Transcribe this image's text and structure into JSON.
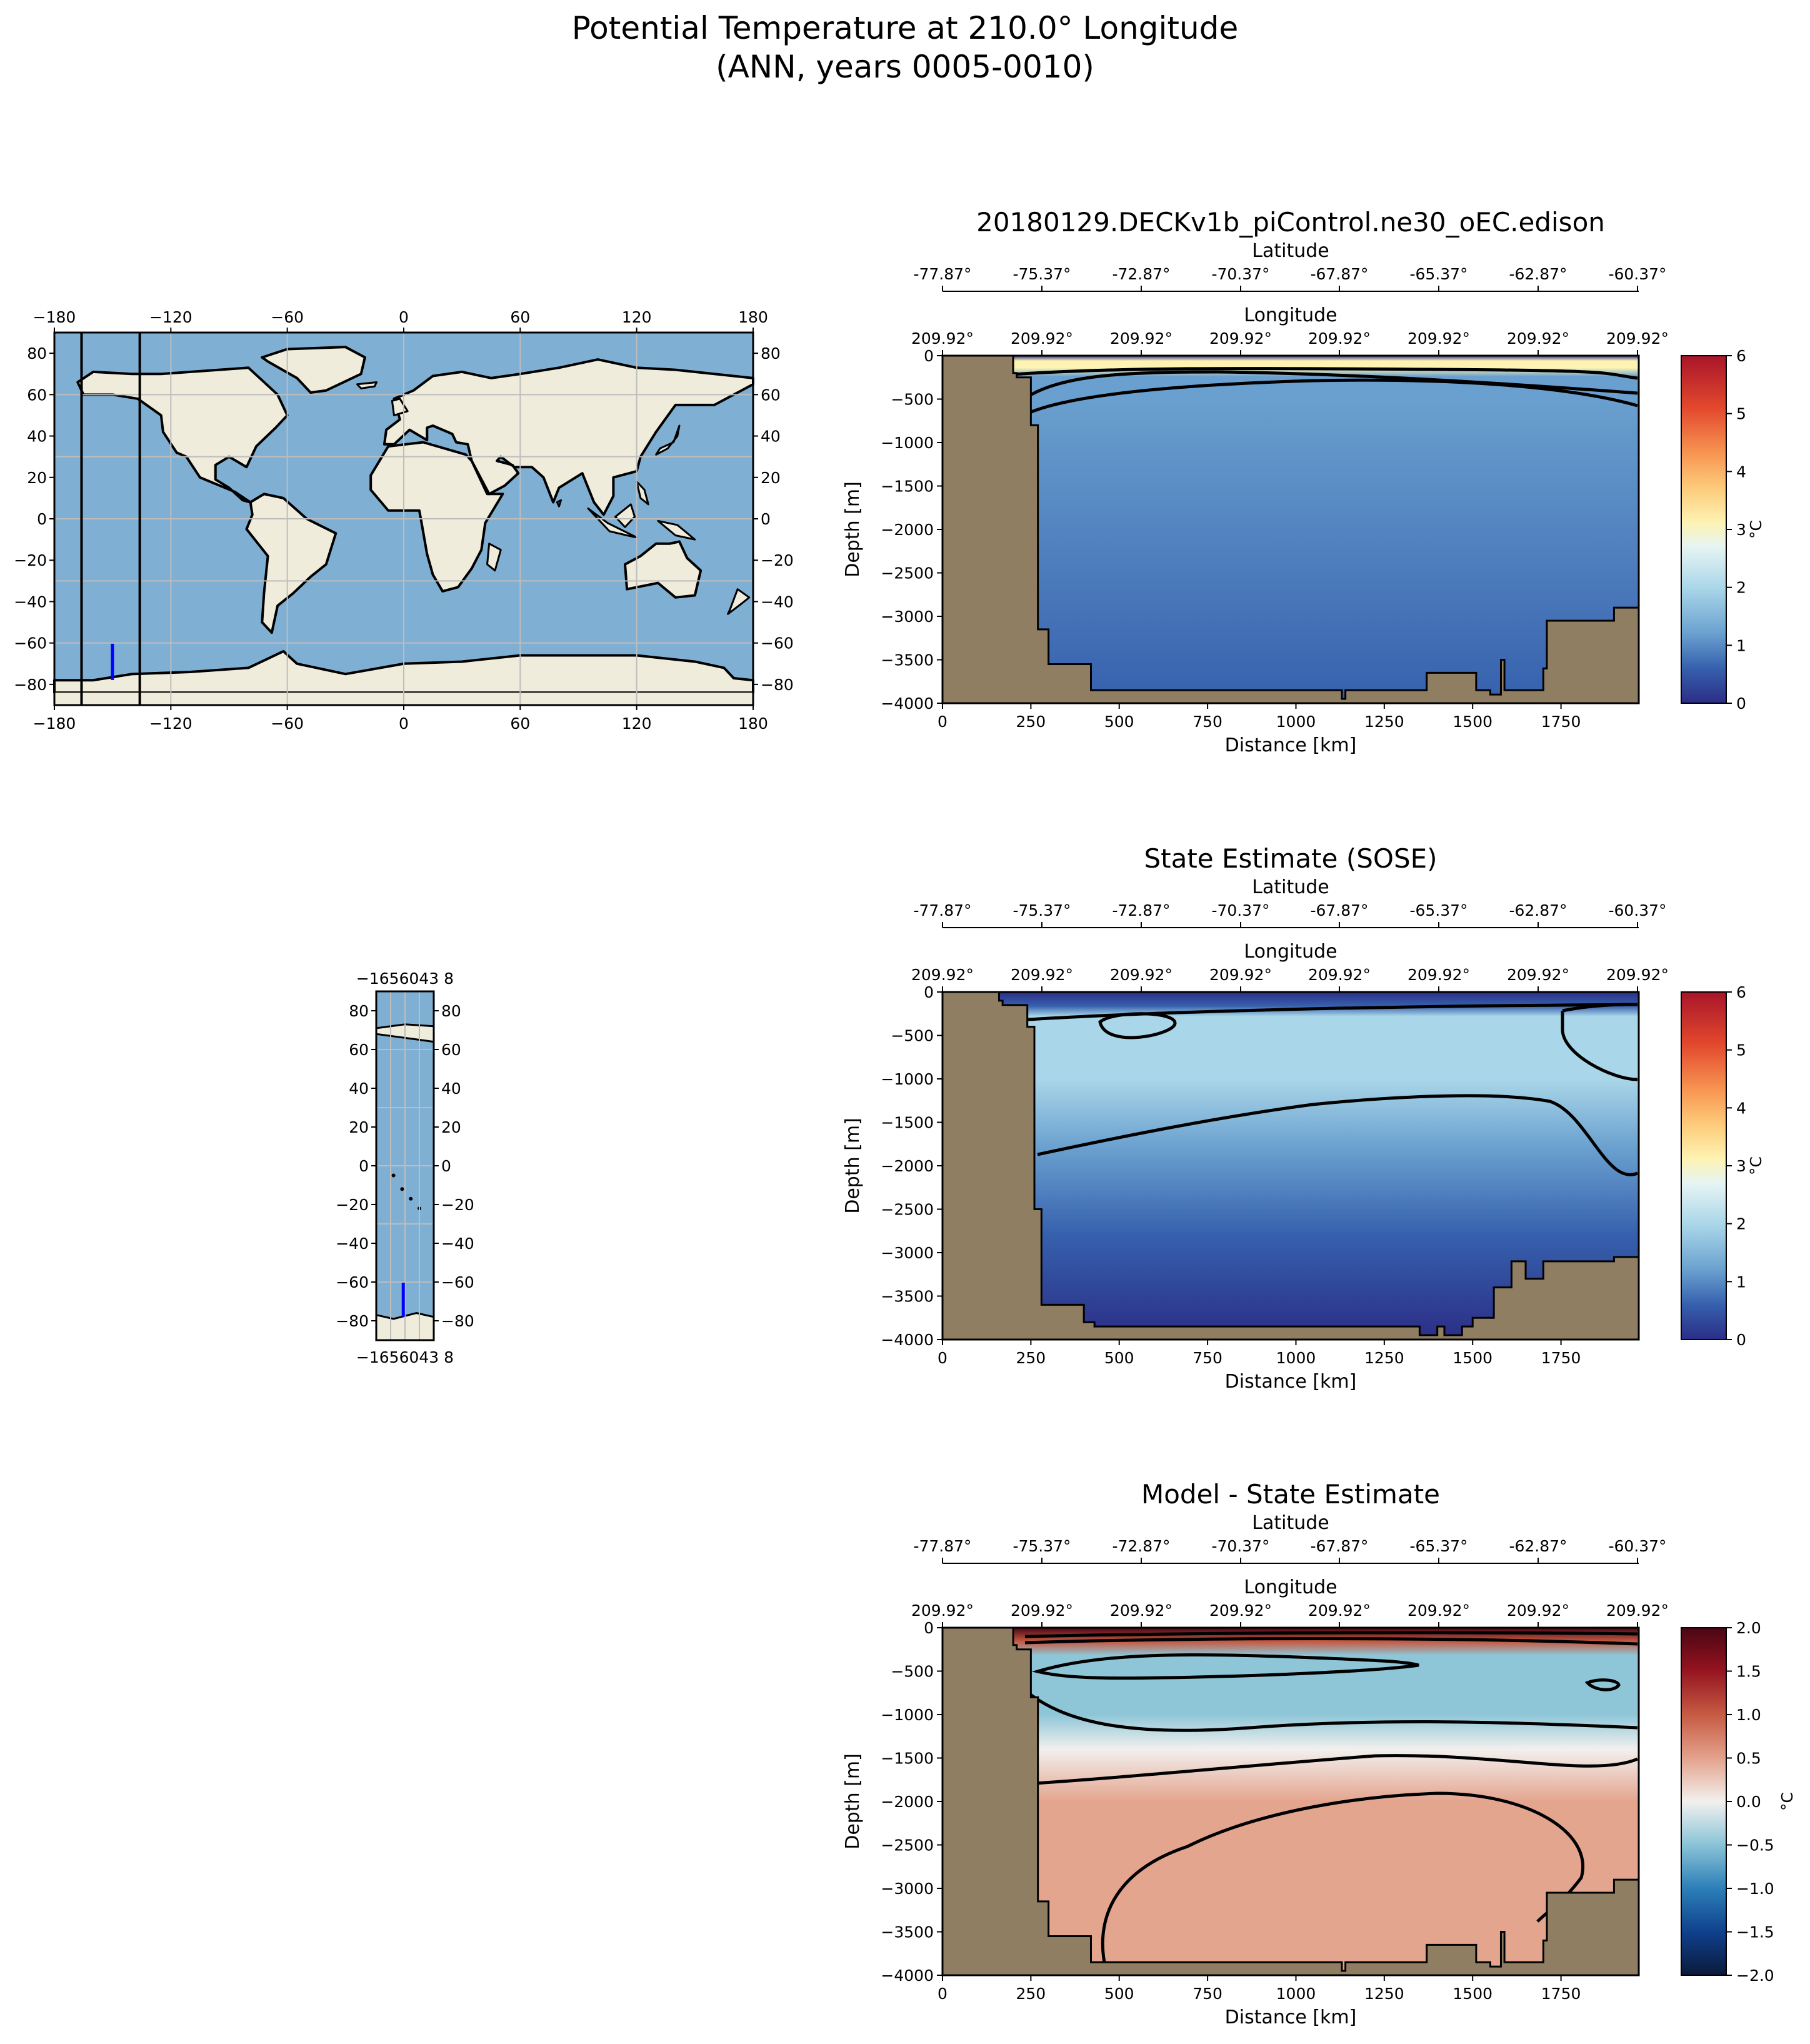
{
  "figure": {
    "title_line1": "Potential Temperature at 210.0° Longitude",
    "title_line2": "(ANN, years 0005-0010)"
  },
  "colors": {
    "land": "#8f7e62",
    "map_ocean": "#7fb0d4",
    "map_land": "#efecdc",
    "transect_line": "#0000ff"
  },
  "world_map": {
    "x_ticks": [
      "−180",
      "−120",
      "−60",
      "0",
      "60",
      "120",
      "180"
    ],
    "y_ticks": [
      "80",
      "60",
      "40",
      "20",
      "0",
      "−20",
      "−40",
      "−60",
      "−80"
    ],
    "section_lon": -150.08,
    "section_lat_range": [
      -77.87,
      -60.37
    ],
    "bounds_lon": [
      -166,
      -136
    ]
  },
  "inset_map": {
    "x_tick_label": "−1656043 8",
    "y_ticks": [
      "80",
      "60",
      "40",
      "20",
      "0",
      "−20",
      "−40",
      "−60",
      "−80"
    ]
  },
  "common_axes": {
    "lat_label": "Latitude",
    "lat_ticks": [
      "-77.87°",
      "-75.37°",
      "-72.87°",
      "-70.37°",
      "-67.87°",
      "-65.37°",
      "-62.87°",
      "-60.37°"
    ],
    "lon_label": "Longitude",
    "lon_ticks": [
      "209.92°",
      "209.92°",
      "209.92°",
      "209.92°",
      "209.92°",
      "209.92°",
      "209.92°",
      "209.92°"
    ],
    "xlabel": "Distance [km]",
    "ylabel": "Depth [m]",
    "x_ticks": [
      "0",
      "250",
      "500",
      "750",
      "1000",
      "1250",
      "1500",
      "1750"
    ],
    "y_ticks": [
      "0",
      "−500",
      "−1000",
      "−1500",
      "−2000",
      "−2500",
      "−3000",
      "−3500",
      "−4000"
    ],
    "xlim": [
      0,
      1970
    ],
    "ylim": [
      -4000,
      0
    ]
  },
  "chart_data": [
    {
      "type": "heatmap",
      "title": "20180129.DECKv1b_piControl.ne30_oEC.edison",
      "colorbar_label": "°C",
      "colorbar_ticks": [
        "0",
        "1",
        "2",
        "3",
        "4",
        "5",
        "6"
      ],
      "vlim": [
        0,
        6
      ],
      "interior_value_approx": 0.9,
      "contour_levels": [
        0,
        1,
        2,
        3
      ],
      "bathymetry": {
        "distance_km": [
          0,
          200,
          210,
          250,
          270,
          300,
          420,
          810,
          1120,
          1130,
          1140,
          1330,
          1370,
          1460,
          1510,
          1550,
          1580,
          1590,
          1610,
          1700,
          1710,
          1800,
          1900,
          1970
        ],
        "depth_m": [
          0,
          -200,
          -250,
          -800,
          -3150,
          -3550,
          -3850,
          -3850,
          -3850,
          -3950,
          -3850,
          -3850,
          -3650,
          -3650,
          -3850,
          -3900,
          -3500,
          -3850,
          -3850,
          -3600,
          -3050,
          -3050,
          -2900,
          -2850
        ]
      }
    },
    {
      "type": "heatmap",
      "title": "State Estimate (SOSE)",
      "colorbar_label": "°C",
      "colorbar_ticks": [
        "0",
        "1",
        "2",
        "3",
        "4",
        "5",
        "6"
      ],
      "vlim": [
        0,
        6
      ],
      "interior_value_approx": 1.2,
      "contour_levels": [
        0,
        1,
        2
      ],
      "bathymetry": {
        "distance_km": [
          0,
          160,
          170,
          240,
          260,
          280,
          400,
          430,
          1000,
          1330,
          1350,
          1400,
          1420,
          1470,
          1500,
          1560,
          1610,
          1650,
          1700,
          1900,
          1970
        ],
        "depth_m": [
          0,
          -100,
          -150,
          -400,
          -2500,
          -3600,
          -3800,
          -3850,
          -3850,
          -3850,
          -3950,
          -3850,
          -3950,
          -3850,
          -3750,
          -3400,
          -3100,
          -3300,
          -3100,
          -3050,
          -2800
        ]
      }
    },
    {
      "type": "heatmap",
      "title": "Model - State Estimate",
      "colorbar_label": "°C",
      "colorbar_ticks": [
        "2.0",
        "1.5",
        "1.0",
        "0.5",
        "0.0",
        "−0.5",
        "−1.0",
        "−1.5",
        "−2.0"
      ],
      "vlim": [
        -2,
        2
      ],
      "surface_value_approx": 2.0,
      "upper_value_approx": -0.7,
      "deep_value_approx": 0.6,
      "contour_levels": [
        -0.5,
        -0.25,
        0,
        0.25,
        0.5,
        1.0,
        1.5
      ],
      "bathymetry": {
        "distance_km": [
          0,
          200,
          210,
          250,
          270,
          300,
          420,
          810,
          1120,
          1130,
          1140,
          1330,
          1370,
          1460,
          1510,
          1550,
          1580,
          1590,
          1610,
          1700,
          1710,
          1800,
          1900,
          1970
        ],
        "depth_m": [
          0,
          -200,
          -250,
          -800,
          -3150,
          -3550,
          -3850,
          -3850,
          -3850,
          -3950,
          -3850,
          -3850,
          -3650,
          -3650,
          -3850,
          -3900,
          -3500,
          -3850,
          -3850,
          -3600,
          -3050,
          -3050,
          -2900,
          -2850
        ]
      }
    }
  ]
}
